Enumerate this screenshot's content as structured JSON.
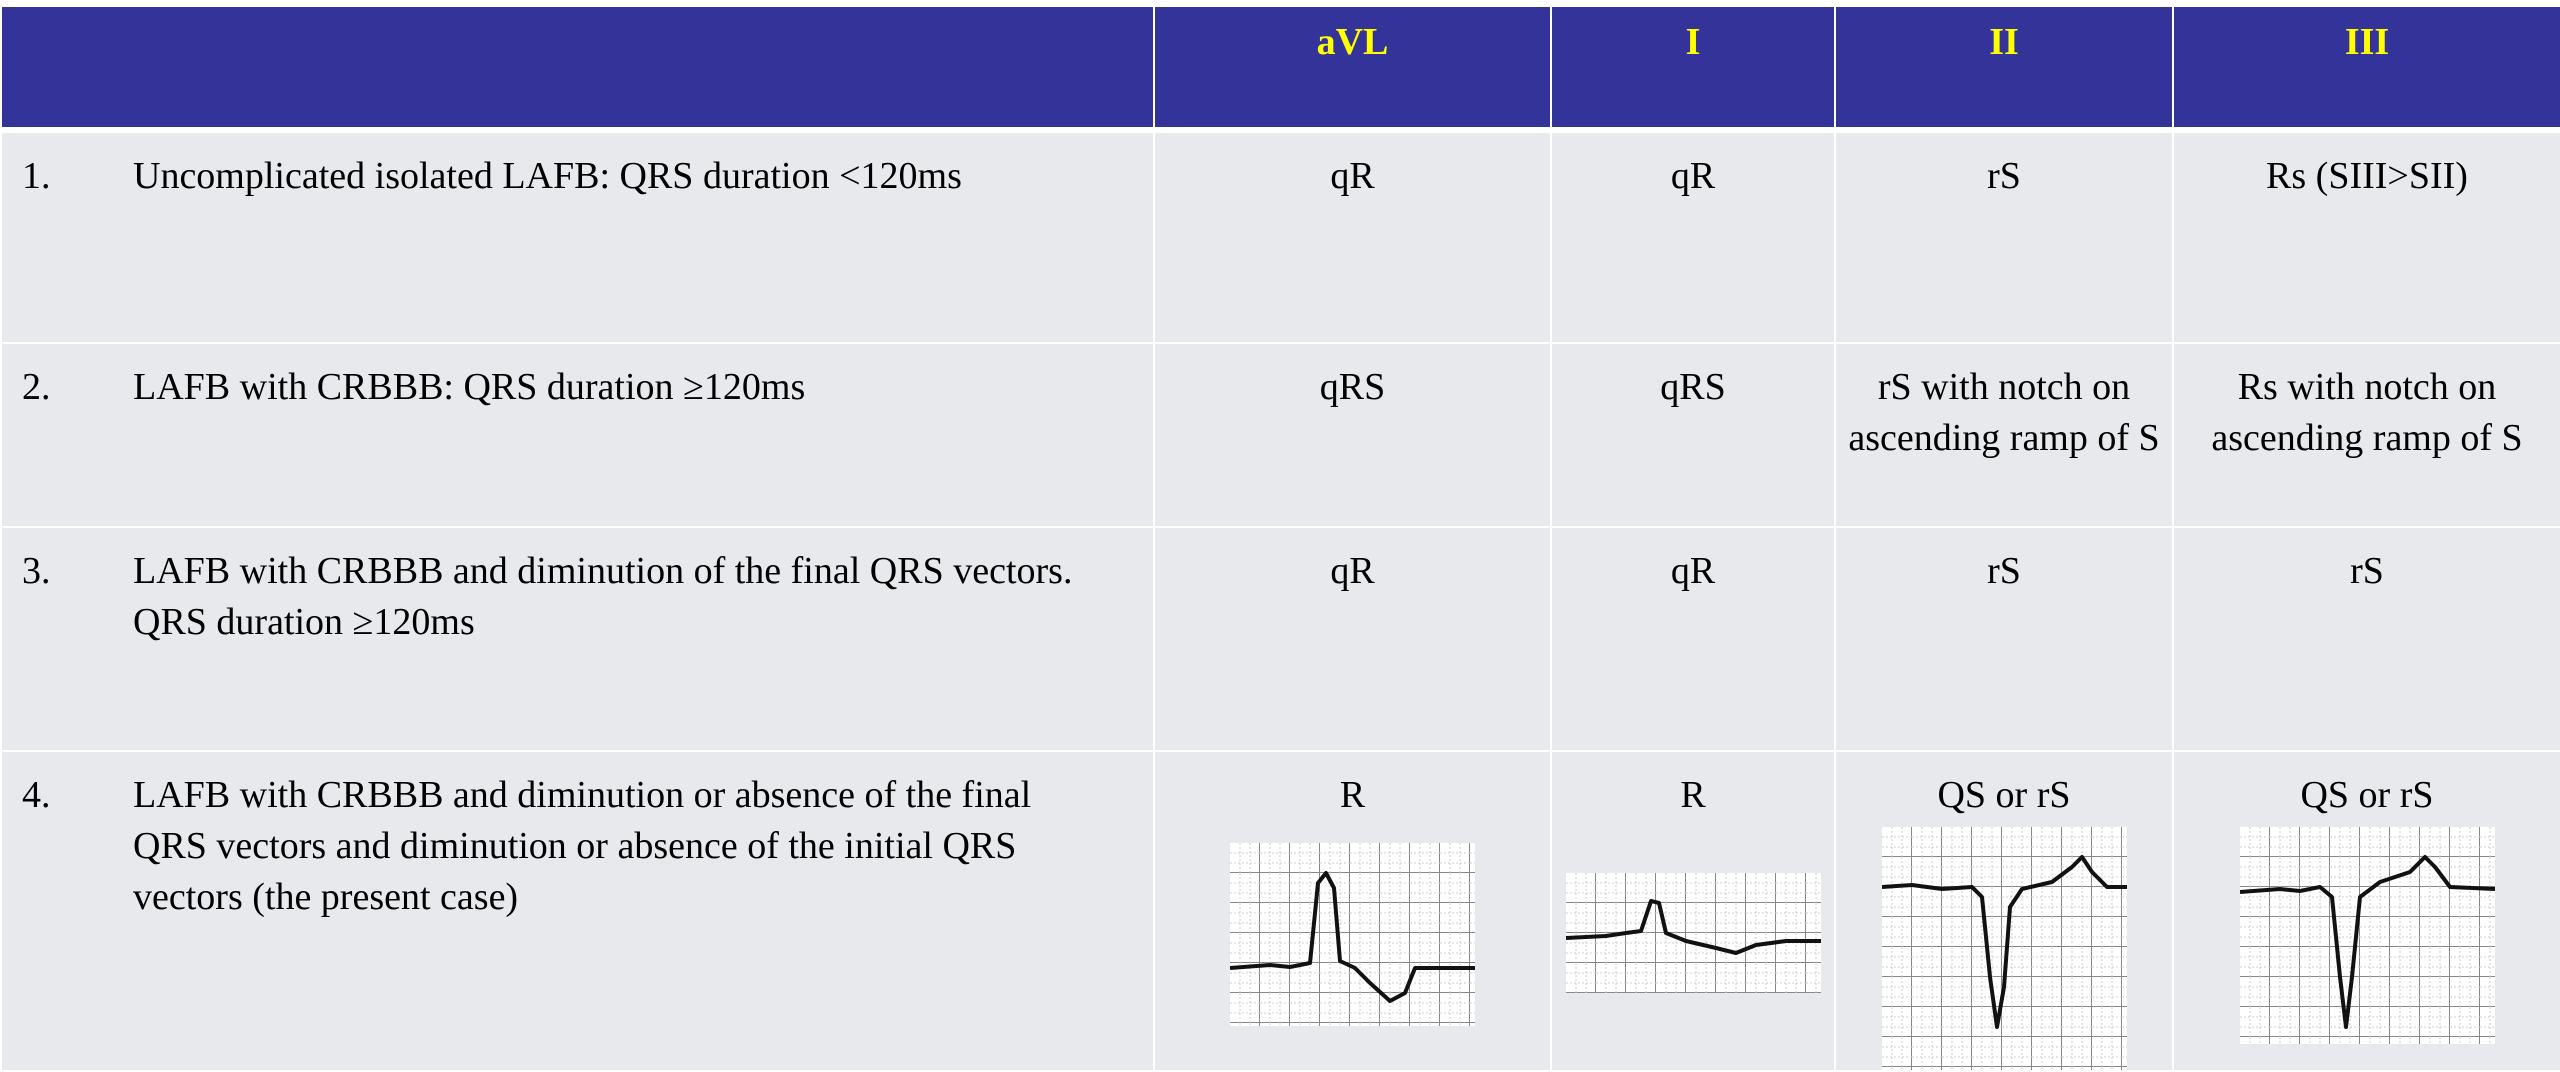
{
  "table": {
    "header": [
      "aVL",
      "I",
      "II",
      "III"
    ],
    "rows": [
      {
        "number": "1.",
        "description": "Uncomplicated isolated LAFB: QRS duration <120ms",
        "cells": [
          "qR",
          "qR",
          "rS",
          "Rs (SIII>SII)"
        ]
      },
      {
        "number": "2.",
        "description": "LAFB with CRBBB: QRS duration ≥120ms",
        "cells": [
          "qRS",
          "qRS",
          "rS with notch on ascending ramp of S",
          "Rs with notch on ascending ramp of S"
        ]
      },
      {
        "number": "3.",
        "description": "LAFB with CRBBB and diminution of the final QRS vectors. QRS duration ≥120ms",
        "cells": [
          "qR",
          "qR",
          "rS",
          "rS"
        ]
      },
      {
        "number": "4.",
        "description": "LAFB with CRBBB and diminution or absence of the final QRS vectors and diminution or absence of the initial QRS vectors (the present case)",
        "cells": [
          "R",
          "R",
          "QS or rS",
          "QS or rS"
        ]
      }
    ]
  }
}
